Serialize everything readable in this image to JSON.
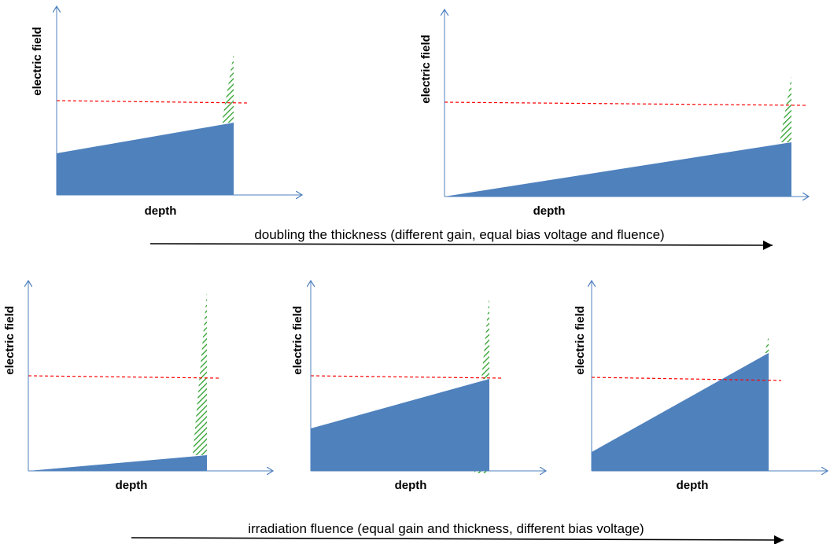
{
  "colors": {
    "axis": "#4f81bd",
    "field_fill": "#4f81bd",
    "gain_hatch": "#2ca02c",
    "threshold": "#ff0000",
    "arrow": "#000000"
  },
  "panels": [
    {
      "id": "top-left",
      "y_label": "electric  field",
      "x_label": "depth"
    },
    {
      "id": "top-right",
      "y_label": "electric  field",
      "x_label": "depth"
    },
    {
      "id": "bottom-left",
      "y_label": "electric  field",
      "x_label": "depth"
    },
    {
      "id": "bottom-middle",
      "y_label": "electric  field",
      "x_label": "depth"
    },
    {
      "id": "bottom-right",
      "y_label": "electric  field",
      "x_label": "depth"
    }
  ],
  "captions": {
    "top": "doubling the thickness (different gain, equal bias voltage and fluence)",
    "bottom": "irradiation fluence (equal gain and thickness, different bias voltage)"
  }
}
